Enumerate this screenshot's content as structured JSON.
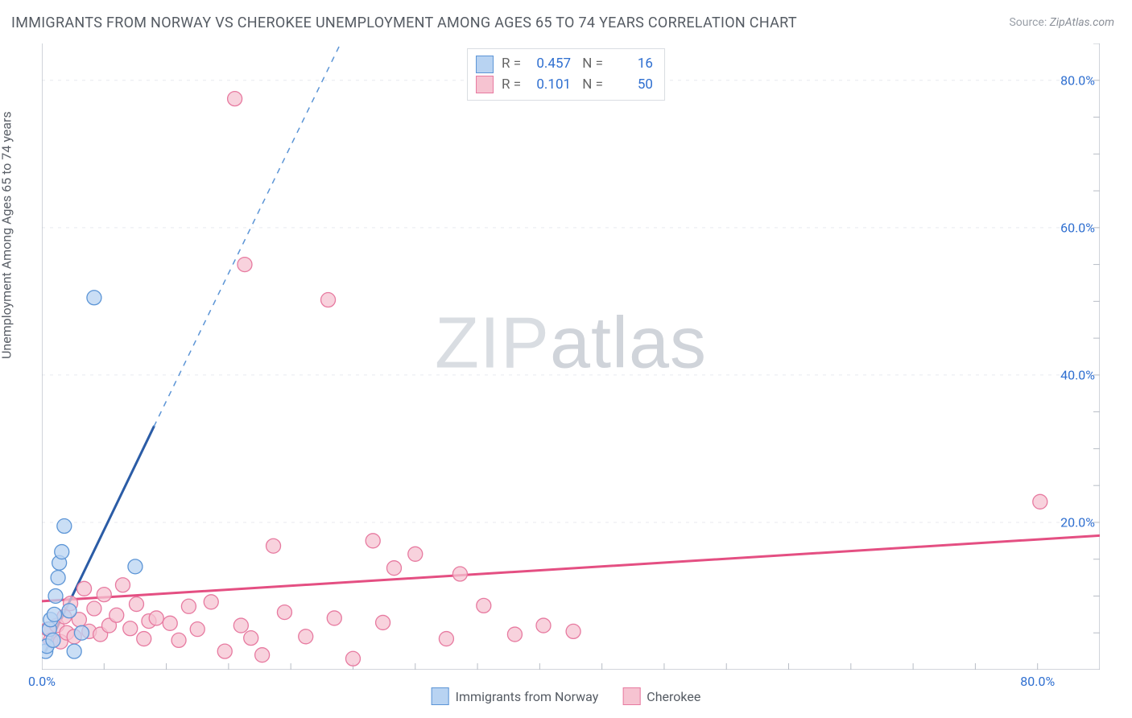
{
  "title": "IMMIGRANTS FROM NORWAY VS CHEROKEE UNEMPLOYMENT AMONG AGES 65 TO 74 YEARS CORRELATION CHART",
  "source_prefix": "Source:",
  "source": "ZipAtlas.com",
  "ylabel": "Unemployment Among Ages 65 to 74 years",
  "watermark": {
    "a": "ZIP",
    "b": "atlas"
  },
  "chart": {
    "type": "scatter",
    "background_color": "#ffffff",
    "grid_color": "#e8eaef",
    "axis_color": "#b7bcc5",
    "tick_color": "#2f6fd0",
    "xlim": [
      0,
      85
    ],
    "ylim": [
      0,
      85
    ],
    "x_ticks": [
      {
        "v": 0,
        "label": "0.0%"
      },
      {
        "v": 80,
        "label": "80.0%"
      }
    ],
    "y_ticks": [
      {
        "v": 20,
        "label": "20.0%"
      },
      {
        "v": 40,
        "label": "40.0%"
      },
      {
        "v": 60,
        "label": "60.0%"
      },
      {
        "v": 80,
        "label": "80.0%"
      }
    ],
    "x_minor_step": 5,
    "series": [
      {
        "id": "norway",
        "legend_label": "Immigrants from Norway",
        "color_fill": "#b8d3f2",
        "color_stroke": "#5c95d6",
        "marker_radius": 9,
        "r": "0.457",
        "n": "16",
        "trend": {
          "solid": {
            "x1": 0.3,
            "y1": 2.5,
            "x2": 9,
            "y2": 33,
            "color": "#2b5ca6",
            "width": 3
          },
          "dashed": {
            "x1": 9,
            "y1": 33,
            "x2": 24,
            "y2": 85,
            "color": "#5c95d6",
            "width": 1.5
          }
        },
        "points": [
          [
            0.3,
            2.5
          ],
          [
            0.4,
            3.2
          ],
          [
            0.6,
            5.5
          ],
          [
            0.7,
            6.8
          ],
          [
            0.9,
            4.0
          ],
          [
            1.0,
            7.5
          ],
          [
            1.1,
            10.0
          ],
          [
            1.3,
            12.5
          ],
          [
            1.4,
            14.5
          ],
          [
            1.6,
            16.0
          ],
          [
            1.8,
            19.5
          ],
          [
            2.2,
            8.0
          ],
          [
            2.6,
            2.5
          ],
          [
            3.2,
            5.0
          ],
          [
            7.5,
            14.0
          ],
          [
            4.2,
            50.5
          ]
        ]
      },
      {
        "id": "cherokee",
        "legend_label": "Cherokee",
        "color_fill": "#f6c3d1",
        "color_stroke": "#e77aa0",
        "marker_radius": 9,
        "r": "0.101",
        "n": "50",
        "trend": {
          "solid": {
            "x1": 0,
            "y1": 9.3,
            "x2": 85,
            "y2": 18.2,
            "color": "#e44f82",
            "width": 3
          },
          "dashed": null
        },
        "points": [
          [
            0.5,
            5.5
          ],
          [
            0.7,
            4.0
          ],
          [
            1.2,
            6.0
          ],
          [
            1.5,
            3.8
          ],
          [
            1.8,
            7.2
          ],
          [
            2.0,
            5.0
          ],
          [
            2.3,
            9.0
          ],
          [
            2.6,
            4.5
          ],
          [
            3.0,
            6.8
          ],
          [
            3.4,
            11.0
          ],
          [
            3.8,
            5.2
          ],
          [
            4.2,
            8.3
          ],
          [
            4.7,
            4.8
          ],
          [
            5.0,
            10.2
          ],
          [
            5.4,
            6.0
          ],
          [
            6.0,
            7.4
          ],
          [
            6.5,
            11.5
          ],
          [
            7.1,
            5.6
          ],
          [
            7.6,
            8.9
          ],
          [
            8.2,
            4.2
          ],
          [
            8.6,
            6.6
          ],
          [
            9.2,
            7.0
          ],
          [
            10.3,
            6.3
          ],
          [
            11.0,
            4.0
          ],
          [
            11.8,
            8.6
          ],
          [
            12.5,
            5.5
          ],
          [
            13.6,
            9.2
          ],
          [
            14.7,
            2.5
          ],
          [
            16.0,
            6.0
          ],
          [
            16.8,
            4.3
          ],
          [
            17.7,
            2.0
          ],
          [
            18.6,
            16.8
          ],
          [
            19.5,
            7.8
          ],
          [
            21.2,
            4.5
          ],
          [
            23.5,
            7.0
          ],
          [
            25.0,
            1.5
          ],
          [
            26.6,
            17.5
          ],
          [
            27.4,
            6.4
          ],
          [
            28.3,
            13.8
          ],
          [
            30.0,
            15.7
          ],
          [
            32.5,
            4.2
          ],
          [
            33.6,
            13.0
          ],
          [
            35.5,
            8.7
          ],
          [
            38.0,
            4.8
          ],
          [
            40.3,
            6.0
          ],
          [
            42.7,
            5.2
          ],
          [
            16.3,
            55.0
          ],
          [
            23.0,
            50.2
          ],
          [
            15.5,
            77.5
          ],
          [
            80.2,
            22.8
          ]
        ]
      }
    ]
  }
}
